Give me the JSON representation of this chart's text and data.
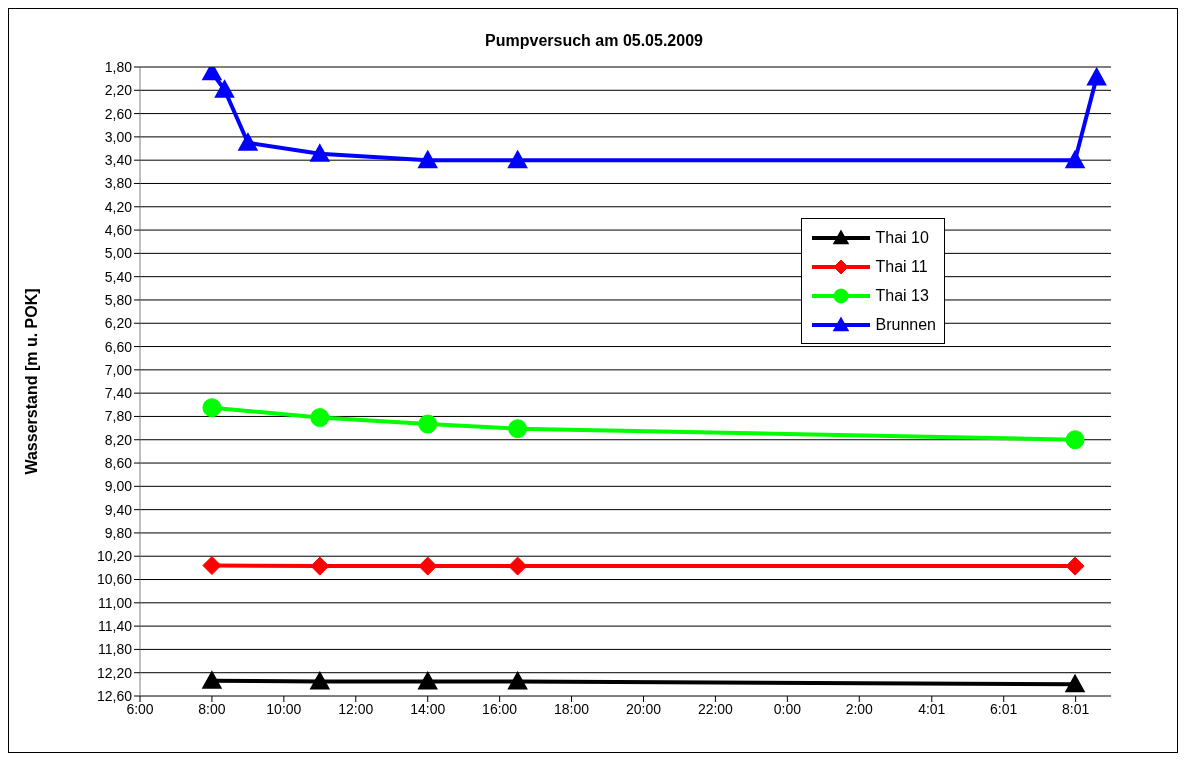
{
  "chart_data": {
    "type": "line",
    "title": "Pumpversuch am 05.05.2009",
    "ylabel": "Wasserstand [m u. POK]",
    "xlim": [
      "2009-05-05T06:00",
      "2009-05-06T09:00"
    ],
    "xticks": [
      {
        "value": "2009-05-05T06:00",
        "label": "6:00"
      },
      {
        "value": "2009-05-05T08:00",
        "label": "8:00"
      },
      {
        "value": "2009-05-05T10:00",
        "label": "10:00"
      },
      {
        "value": "2009-05-05T12:00",
        "label": "12:00"
      },
      {
        "value": "2009-05-05T14:00",
        "label": "14:00"
      },
      {
        "value": "2009-05-05T16:00",
        "label": "16:00"
      },
      {
        "value": "2009-05-05T18:00",
        "label": "18:00"
      },
      {
        "value": "2009-05-05T20:00",
        "label": "20:00"
      },
      {
        "value": "2009-05-05T22:00",
        "label": "22:00"
      },
      {
        "value": "2009-05-06T00:00",
        "label": "0:00"
      },
      {
        "value": "2009-05-06T02:00",
        "label": "2:00"
      },
      {
        "value": "2009-05-06T04:01",
        "label": "4:01"
      },
      {
        "value": "2009-05-06T06:01",
        "label": "6:01"
      },
      {
        "value": "2009-05-06T08:01",
        "label": "8:01"
      }
    ],
    "ylim": [
      12.6,
      1.8
    ],
    "yticks": [
      {
        "value": 1.8,
        "label": "1,80"
      },
      {
        "value": 2.2,
        "label": "2,20"
      },
      {
        "value": 2.6,
        "label": "2,60"
      },
      {
        "value": 3.0,
        "label": "3,00"
      },
      {
        "value": 3.4,
        "label": "3,40"
      },
      {
        "value": 3.8,
        "label": "3,80"
      },
      {
        "value": 4.2,
        "label": "4,20"
      },
      {
        "value": 4.6,
        "label": "4,60"
      },
      {
        "value": 5.0,
        "label": "5,00"
      },
      {
        "value": 5.4,
        "label": "5,40"
      },
      {
        "value": 5.8,
        "label": "5,80"
      },
      {
        "value": 6.2,
        "label": "6,20"
      },
      {
        "value": 6.6,
        "label": "6,60"
      },
      {
        "value": 7.0,
        "label": "7,00"
      },
      {
        "value": 7.4,
        "label": "7,40"
      },
      {
        "value": 7.8,
        "label": "7,80"
      },
      {
        "value": 8.2,
        "label": "8,20"
      },
      {
        "value": 8.6,
        "label": "8,60"
      },
      {
        "value": 9.0,
        "label": "9,00"
      },
      {
        "value": 9.4,
        "label": "9,40"
      },
      {
        "value": 9.8,
        "label": "9,80"
      },
      {
        "value": 10.2,
        "label": "10,20"
      },
      {
        "value": 10.6,
        "label": "10,60"
      },
      {
        "value": 11.0,
        "label": "11,00"
      },
      {
        "value": 11.4,
        "label": "11,40"
      },
      {
        "value": 11.8,
        "label": "11,80"
      },
      {
        "value": 12.2,
        "label": "12,20"
      },
      {
        "value": 12.6,
        "label": "12,60"
      }
    ],
    "grid": "y",
    "legend": "right",
    "series": [
      {
        "name": "Thai 10",
        "color": "#000000",
        "marker": "triangle",
        "x": [
          "2009-05-05T08:00",
          "2009-05-05T11:00",
          "2009-05-05T14:00",
          "2009-05-05T16:30",
          "2009-05-06T08:00"
        ],
        "values": [
          12.34,
          12.35,
          12.35,
          12.35,
          12.4
        ]
      },
      {
        "name": "Thai 11",
        "color": "#ff0000",
        "marker": "diamond",
        "x": [
          "2009-05-05T08:00",
          "2009-05-05T11:00",
          "2009-05-05T14:00",
          "2009-05-05T16:30",
          "2009-05-06T08:00"
        ],
        "values": [
          10.36,
          10.37,
          10.37,
          10.37,
          10.37
        ]
      },
      {
        "name": "Thai 13",
        "color": "#00ff00",
        "marker": "circle",
        "x": [
          "2009-05-05T08:00",
          "2009-05-05T11:00",
          "2009-05-05T14:00",
          "2009-05-05T16:30",
          "2009-05-06T08:00"
        ],
        "values": [
          7.65,
          7.82,
          7.93,
          8.01,
          8.2
        ]
      },
      {
        "name": "Brunnen",
        "color": "#0000ff",
        "marker": "triangle",
        "x": [
          "2009-05-05T08:00",
          "2009-05-05T08:21",
          "2009-05-05T09:00",
          "2009-05-05T11:00",
          "2009-05-05T14:00",
          "2009-05-05T16:30",
          "2009-05-06T08:00",
          "2009-05-06T08:36"
        ],
        "values": [
          1.89,
          2.19,
          3.1,
          3.29,
          3.4,
          3.4,
          3.4,
          1.98
        ]
      }
    ]
  }
}
